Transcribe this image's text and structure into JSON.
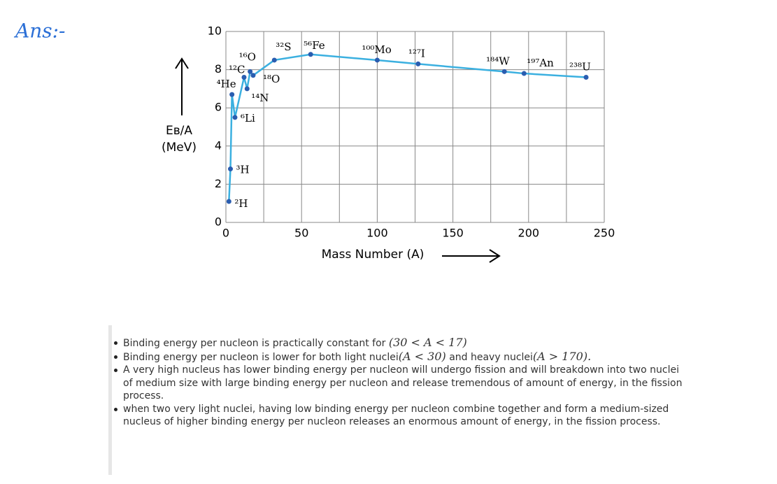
{
  "header": {
    "title": "Ans:-"
  },
  "chart_data": {
    "type": "line",
    "ylabel": [
      "Eʙ/A",
      "(MeV)"
    ],
    "xlabel": "Mass Number (A)",
    "x": [
      2,
      3,
      4,
      6,
      12,
      14,
      16,
      18,
      32,
      56,
      100,
      127,
      184,
      197,
      238
    ],
    "values": [
      1.1,
      2.8,
      6.7,
      5.5,
      7.6,
      7.0,
      7.9,
      7.7,
      8.5,
      8.8,
      8.5,
      8.3,
      7.9,
      7.8,
      7.6
    ],
    "point_labels": [
      "²H",
      "³H",
      "⁴He",
      "⁶Li",
      "¹²C",
      "¹⁴N",
      "¹⁶O",
      "¹⁸O",
      "³²S",
      "⁵⁶Fe",
      "¹⁰⁰Mo",
      "¹²⁷I",
      "¹⁸⁴W",
      "¹⁹⁷An",
      "²³⁸U"
    ],
    "line_color": "#3bb0e0",
    "marker_color": "#2a5db0",
    "xlim": [
      0,
      250
    ],
    "ylim": [
      0,
      10
    ],
    "xticks": [
      0,
      50,
      100,
      150,
      200,
      250
    ],
    "xgrid": [
      0,
      25,
      50,
      75,
      100,
      125,
      150,
      175,
      200,
      225,
      250
    ],
    "yticks": [
      0,
      2,
      4,
      6,
      8,
      10
    ],
    "grid": true
  },
  "notes": {
    "items": [
      [
        [
          "Binding energy per nucleon is practically constant for ",
          "(30 < A < 17)"
        ]
      ],
      [
        [
          "Binding energy per nucleon is lower for both light nuclei",
          "(A < 30)",
          " and heavy nuclei",
          "(A > 170)."
        ]
      ],
      [
        [
          "A very high nucleus has lower binding energy per nucleon will undergo fission and will breakdown into two nuclei"
        ],
        [
          "of medium size with large binding energy per nucleon and release tremendous of amount of energy, in the fission process."
        ]
      ],
      [
        [
          " when two very light nuclei, having low binding energy per nucleon combine together and form a medium-sized nucleus of higher binding energy per nucleon releases an enormous amount of energy, in the fission process."
        ]
      ]
    ]
  }
}
